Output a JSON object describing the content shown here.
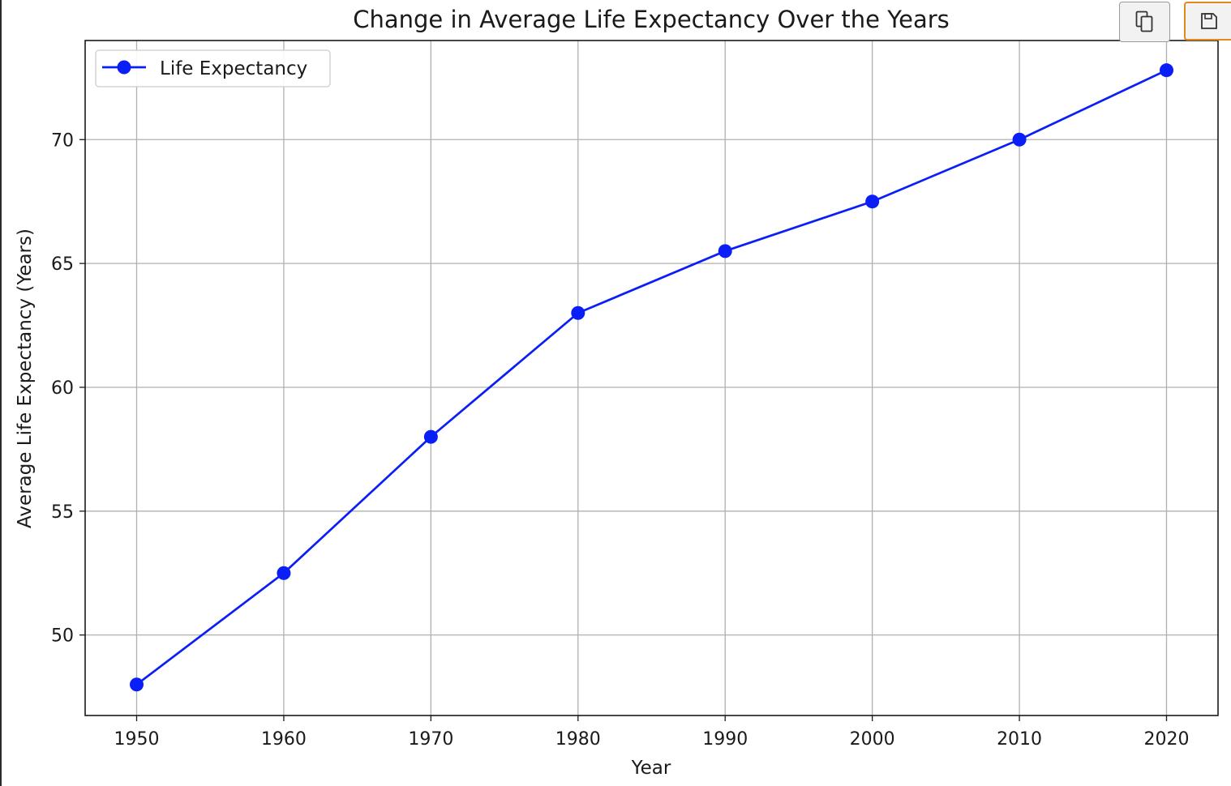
{
  "toolbar": {
    "copy_icon": "copy-icon",
    "save_icon": "save-icon",
    "save_border_color": "#e08a1e"
  },
  "chart_data": {
    "type": "line",
    "title": "Change in Average Life Expectancy Over the Years",
    "xlabel": "Year",
    "ylabel": "Average Life Expectancy (Years)",
    "x": [
      1950,
      1960,
      1970,
      1980,
      1990,
      2000,
      2010,
      2020
    ],
    "series": [
      {
        "name": "Life Expectancy",
        "color": "#0a1ef7",
        "marker": "circle",
        "values": [
          48.0,
          52.5,
          58.0,
          63.0,
          65.5,
          67.5,
          70.0,
          72.8
        ]
      }
    ],
    "xticks": [
      1950,
      1960,
      1970,
      1980,
      1990,
      2000,
      2010,
      2020
    ],
    "yticks": [
      50,
      55,
      60,
      65,
      70
    ],
    "xlim": [
      1946.5,
      2023.5
    ],
    "ylim": [
      46.75,
      74.0
    ],
    "grid": true,
    "legend": "top-left"
  }
}
